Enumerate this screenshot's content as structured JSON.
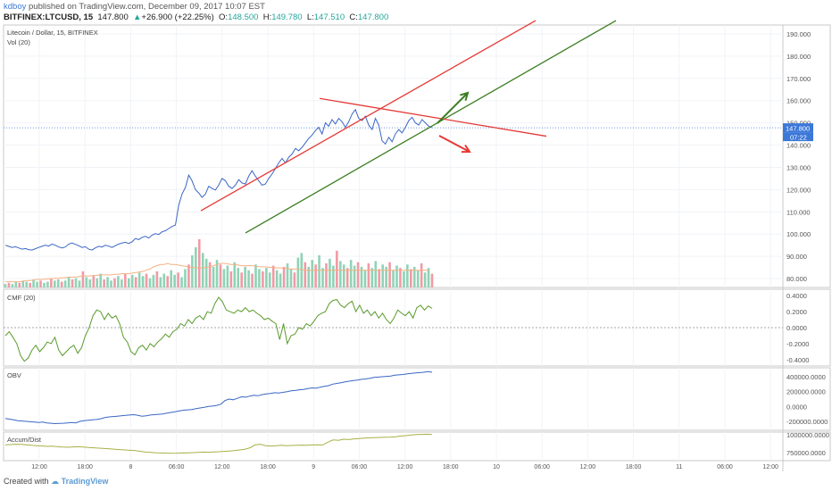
{
  "header": {
    "user": "kdboy",
    "published": "published on TradingView.com, December 09, 2017 10:07 EST",
    "symbol": "BITFINEX:LTCUSD, 15",
    "last": "147.800",
    "change": "+26.900 (+22.25%)",
    "o_label": "O:",
    "open": "148.500",
    "h_label": "H:",
    "high": "149.780",
    "l_label": "L:",
    "low": "147.510",
    "c_label": "C:",
    "close": "147.800"
  },
  "footer": {
    "created_with": "Created with",
    "brand": "TradingView"
  },
  "colors": {
    "price": "#3b66c4",
    "channel_red": "#e53935",
    "channel_green": "#3a7d1f",
    "vol_up": "#8fd3b6",
    "vol_down": "#f19aa4",
    "vol_ma": "#f4b183",
    "cmf": "#5a9a2b",
    "obv": "#3b66c4",
    "accum": "#a8b046",
    "price_label_bg": "#3c78d8"
  },
  "chart_data": [
    {
      "type": "line",
      "title": "Litecoin / Dollar, 15, BITFINEX",
      "subtitle": "Vol (20)",
      "x_ticks": [
        "12:00",
        "18:00",
        "8",
        "06:00",
        "12:00",
        "18:00",
        "9",
        "06:00",
        "12:00",
        "18:00",
        "10",
        "06:00",
        "12:00",
        "18:00",
        "11",
        "06:00",
        "12:00"
      ],
      "y_ticks": [
        "80.000",
        "90.000",
        "100.000",
        "110.000",
        "120.000",
        "130.000",
        "140.000",
        "150.000",
        "160.000",
        "170.000",
        "180.000",
        "190.000"
      ],
      "ylim": [
        76,
        194
      ],
      "last_price_label": "147.800",
      "countdown_label": "07:22",
      "series": [
        {
          "values": [
            95,
            94.5,
            94,
            94.3,
            93.8,
            93.2,
            93.5,
            93,
            92.8,
            93.4,
            94,
            94.5,
            95,
            94.6,
            95.5,
            95,
            94.2,
            93.8,
            94.2,
            95.5,
            96,
            95.4,
            94.8,
            94,
            94.3,
            93.2,
            92.8,
            93.8,
            94.5,
            94.2,
            95,
            94.6,
            94,
            94.8,
            95.5,
            96,
            96.3,
            95.8,
            96.5,
            98,
            97.5,
            98.5,
            99,
            98.2,
            99.5,
            100.2,
            99.8,
            101,
            101.5,
            102.5,
            103.4,
            104,
            113,
            118,
            121,
            126.5,
            124,
            120,
            118.5,
            116.5,
            118,
            121.5,
            120.5,
            119.8,
            122,
            125,
            124,
            121.5,
            120.5,
            122,
            124.5,
            123,
            122.5,
            126,
            128.5,
            126,
            124,
            122,
            122.5,
            125,
            127,
            129.5,
            132,
            134,
            132,
            134.5,
            136,
            138.5,
            137.5,
            139,
            141,
            143,
            144.5,
            146.5,
            148,
            145,
            150,
            148.5,
            151.5,
            149.5,
            152,
            150.5,
            148,
            150.5,
            154,
            156,
            152,
            151,
            153,
            149,
            147,
            152,
            149,
            142,
            140.5,
            143.5,
            141.5,
            145,
            147,
            145.5,
            148,
            151,
            152.5,
            150,
            149,
            151.5,
            150,
            148.5,
            147.8
          ]
        }
      ],
      "volume": {
        "values": [
          3,
          4,
          3,
          5,
          4,
          6,
          5,
          4,
          7,
          5,
          6,
          4,
          5,
          8,
          6,
          7,
          5,
          6,
          9,
          7,
          8,
          6,
          14,
          9,
          7,
          10,
          8,
          12,
          7,
          9,
          6,
          8,
          10,
          7,
          12,
          8,
          11,
          9,
          13,
          10,
          12,
          8,
          11,
          14,
          9,
          12,
          10,
          15,
          11,
          13,
          9,
          16,
          20,
          28,
          35,
          42,
          30,
          25,
          22,
          18,
          24,
          20,
          16,
          19,
          14,
          22,
          17,
          13,
          18,
          15,
          12,
          20,
          16,
          14,
          17,
          13,
          19,
          15,
          12,
          18,
          21,
          16,
          13,
          26,
          30,
          22,
          18,
          24,
          20,
          28,
          17,
          21,
          25,
          19,
          32,
          23,
          20,
          17,
          24,
          19,
          22,
          18,
          15,
          21,
          17,
          23,
          16,
          20,
          18,
          22,
          15,
          19,
          17,
          14,
          20,
          16,
          18,
          15,
          21,
          13,
          17,
          12
        ],
        "ma": [
          5,
          5,
          5,
          5,
          5,
          5.5,
          6,
          6,
          6.5,
          7,
          7,
          7,
          7.5,
          7.5,
          8,
          8,
          8.5,
          8.5,
          9,
          9,
          9,
          9.5,
          10,
          10,
          10,
          10.5,
          10.5,
          11,
          11,
          11,
          11,
          11.5,
          11.5,
          12,
          12,
          12,
          12.5,
          13,
          13.5,
          14,
          15,
          16,
          18,
          19,
          20,
          20,
          21,
          20,
          20,
          19.5,
          19,
          18.5,
          18,
          17.5,
          17,
          17,
          17,
          17.5,
          18,
          19,
          20,
          21,
          21,
          20.5,
          20,
          20,
          19.5,
          19,
          19,
          19,
          19,
          18.5,
          18,
          18,
          18,
          17.5,
          17.5,
          17,
          17,
          17,
          16.5,
          16,
          16,
          16,
          15.5,
          15,
          15,
          15,
          15,
          15,
          15,
          15,
          15,
          15,
          15,
          15,
          15,
          15,
          15,
          15,
          15,
          15,
          15,
          15,
          15,
          15,
          15,
          15,
          15,
          15,
          15,
          15,
          15,
          15,
          15,
          15,
          15,
          15,
          15,
          15,
          15
        ]
      },
      "annotations": [
        "upper channel line",
        "lower channel line",
        "descending resistance line",
        "up arrow",
        "down arrow"
      ]
    },
    {
      "type": "line",
      "title": "CMF (20)",
      "y_ticks": [
        "0.4000",
        "0.2000",
        "0.0000",
        "-0.2000",
        "-0.4000"
      ],
      "ylim": [
        -0.48,
        0.48
      ],
      "series": [
        {
          "values": [
            -0.1,
            -0.05,
            -0.12,
            -0.2,
            -0.35,
            -0.42,
            -0.38,
            -0.28,
            -0.22,
            -0.3,
            -0.25,
            -0.18,
            -0.2,
            -0.12,
            -0.28,
            -0.35,
            -0.3,
            -0.25,
            -0.22,
            -0.32,
            -0.25,
            -0.1,
            0.0,
            0.15,
            0.22,
            0.2,
            0.1,
            0.18,
            0.12,
            0.15,
            0.05,
            -0.12,
            -0.18,
            -0.3,
            -0.34,
            -0.25,
            -0.22,
            -0.28,
            -0.2,
            -0.24,
            -0.18,
            -0.14,
            -0.08,
            -0.12,
            -0.05,
            -0.02,
            0.05,
            0.02,
            0.1,
            0.05,
            0.12,
            0.15,
            0.1,
            0.2,
            0.18,
            0.3,
            0.38,
            0.32,
            0.22,
            0.2,
            0.18,
            0.22,
            0.2,
            0.25,
            0.2,
            0.22,
            0.18,
            0.15,
            0.1,
            0.12,
            0.08,
            0.05,
            -0.15,
            0.05,
            -0.2,
            -0.1,
            -0.08,
            0.0,
            -0.02,
            0.05,
            0.02,
            0.08,
            0.15,
            0.18,
            0.2,
            0.3,
            0.34,
            0.35,
            0.28,
            0.25,
            0.3,
            0.33,
            0.2,
            0.28,
            0.18,
            0.22,
            0.15,
            0.2,
            0.12,
            0.18,
            0.1,
            0.05,
            0.12,
            0.22,
            0.18,
            0.15,
            0.2,
            0.12,
            0.25,
            0.28,
            0.22,
            0.27,
            0.24
          ]
        }
      ]
    },
    {
      "type": "line",
      "title": "OBV",
      "y_ticks": [
        "400000.0000",
        "200000.0000",
        "0.0000",
        "-200000.0000"
      ],
      "ylim": [
        -320000,
        520000
      ],
      "series": [
        {
          "values": [
            -160000,
            -170000,
            -180000,
            -190000,
            -195000,
            -200000,
            -205000,
            -210000,
            -215000,
            -210000,
            -220000,
            -225000,
            -230000,
            -228000,
            -225000,
            -220000,
            -215000,
            -220000,
            -200000,
            -190000,
            -185000,
            -180000,
            -175000,
            -165000,
            -150000,
            -140000,
            -135000,
            -130000,
            -125000,
            -120000,
            -115000,
            -110000,
            -120000,
            -130000,
            -125000,
            -115000,
            -110000,
            -105000,
            -100000,
            -90000,
            -80000,
            -70000,
            -60000,
            -50000,
            -45000,
            -40000,
            -30000,
            -20000,
            -10000,
            0,
            5000,
            15000,
            30000,
            80000,
            100000,
            90000,
            110000,
            130000,
            125000,
            140000,
            150000,
            145000,
            160000,
            170000,
            175000,
            185000,
            180000,
            190000,
            200000,
            210000,
            215000,
            225000,
            230000,
            240000,
            250000,
            245000,
            260000,
            270000,
            280000,
            300000,
            310000,
            320000,
            330000,
            340000,
            350000,
            355000,
            365000,
            370000,
            380000,
            390000,
            395000,
            400000,
            405000,
            410000,
            420000,
            425000,
            430000,
            440000,
            445000,
            450000,
            455000,
            460000,
            470000,
            460000
          ]
        }
      ]
    },
    {
      "type": "line",
      "title": "Accum/Dist",
      "y_ticks": [
        "1000000.0000",
        "750000.0000"
      ],
      "ylim": [
        640000,
        1040000
      ],
      "series": [
        {
          "values": [
            860000,
            865000,
            870000,
            868000,
            862000,
            855000,
            850000,
            845000,
            840000,
            842000,
            835000,
            830000,
            828000,
            832000,
            835000,
            830000,
            825000,
            820000,
            815000,
            810000,
            805000,
            800000,
            795000,
            790000,
            785000,
            780000,
            770000,
            760000,
            755000,
            750000,
            748000,
            745000,
            742000,
            745000,
            750000,
            748000,
            752000,
            755000,
            760000,
            758000,
            762000,
            765000,
            770000,
            775000,
            780000,
            790000,
            800000,
            820000,
            860000,
            870000,
            850000,
            845000,
            848000,
            855000,
            850000,
            852000,
            855000,
            858000,
            855000,
            860000,
            862000,
            860000,
            900000,
            930000,
            925000,
            940000,
            935000,
            945000,
            950000,
            955000,
            960000,
            962000,
            965000,
            968000,
            970000,
            975000,
            985000,
            990000,
            1000000,
            1005000,
            1008000,
            1010000,
            1005000
          ]
        }
      ]
    }
  ]
}
